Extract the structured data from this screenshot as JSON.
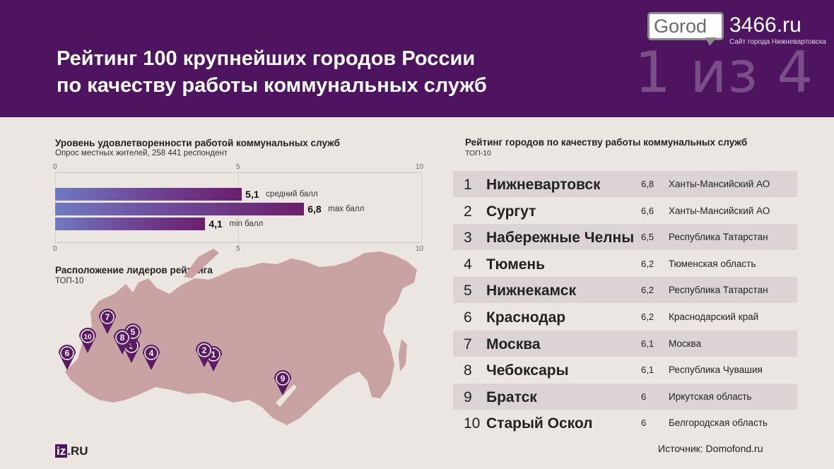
{
  "header": {
    "title_line1": "Рейтинг 100 крупнейших городов России",
    "title_line2": "по качеству работы коммунальных служб",
    "counter": "1 из 4",
    "logo_name": "Gorod",
    "logo_number": "3466.ru",
    "logo_tagline": "Сайт города Нижневартовска"
  },
  "satisfaction": {
    "title": "Уровень удовлетворенности работой коммунальных служб",
    "subtitle": "Опрос местных жителей, 258 441 респондент"
  },
  "chart_data": {
    "type": "bar",
    "orientation": "horizontal",
    "categories": [
      "средний балл",
      "max балл",
      "min балл"
    ],
    "values": [
      5.1,
      6.8,
      4.1
    ],
    "value_labels": [
      "5,1",
      "6,8",
      "4,1"
    ],
    "xlim": [
      0,
      10
    ],
    "ticks": [
      "0",
      "5",
      "10"
    ],
    "grid": true
  },
  "map_section": {
    "title": "Расположение лидеров рейтинга",
    "subtitle": "ТОП-10",
    "pins": [
      "1",
      "2",
      "3",
      "4",
      "5",
      "6",
      "7",
      "8",
      "9",
      "10"
    ]
  },
  "ranking": {
    "title": "Рейтинг городов по качеству работы коммунальных служб",
    "subtitle": "ТОП-10",
    "rows": [
      {
        "rank": "1",
        "city": "Нижневартовск",
        "score": "6,8",
        "region": "Ханты-Мансийский АО"
      },
      {
        "rank": "2",
        "city": "Сургут",
        "score": "6,6",
        "region": "Ханты-Мансийский АО"
      },
      {
        "rank": "3",
        "city": "Набережные Челны",
        "score": "6,5",
        "region": "Республика Татарстан"
      },
      {
        "rank": "4",
        "city": "Тюмень",
        "score": "6,2",
        "region": "Тюменская область"
      },
      {
        "rank": "5",
        "city": "Нижнекамск",
        "score": "6,2",
        "region": "Республика Татарстан"
      },
      {
        "rank": "6",
        "city": "Краснодар",
        "score": "6,2",
        "region": "Краснодарский край"
      },
      {
        "rank": "7",
        "city": "Москва",
        "score": "6,1",
        "region": "Москва"
      },
      {
        "rank": "8",
        "city": "Чебоксары",
        "score": "6,1",
        "region": "Республика Чувашия"
      },
      {
        "rank": "9",
        "city": "Братск",
        "score": "6",
        "region": "Иркутская область"
      },
      {
        "rank": "10",
        "city": "Старый Оскол",
        "score": "6",
        "region": "Белгородская область"
      }
    ]
  },
  "footer": {
    "brand_box": "iz",
    "brand_rest": ".RU",
    "source": "Источник: Domofond.ru"
  },
  "colors": {
    "header_bg": "#4f1460",
    "map_fill": "#c9a3a4",
    "pin": "#5b1a63",
    "row_shade": "#dcd4d4"
  }
}
